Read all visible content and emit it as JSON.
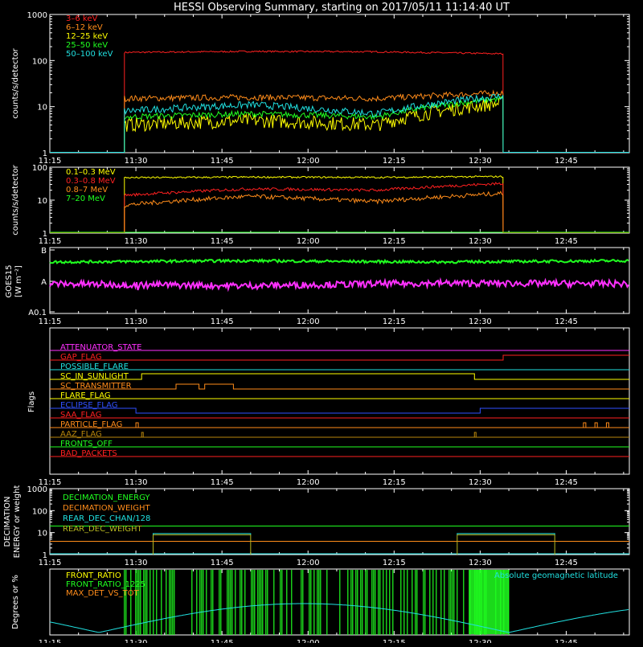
{
  "title": "HESSI Observing Summary, starting on 2017/05/11 11:14:40 UT",
  "time_axis": {
    "start": "11:15",
    "end": "12:56",
    "ticks": [
      "11:15",
      "11:30",
      "11:45",
      "12:00",
      "12:15",
      "12:30",
      "12:45"
    ]
  },
  "chart_data": [
    {
      "id": "lowE",
      "type": "line",
      "ylabel": "counts/s/detector",
      "yscale": "log",
      "ylim": [
        1,
        1000
      ],
      "yticks": [
        "1",
        "10",
        "100",
        "1000"
      ],
      "legend": "top-left",
      "data_window": [
        "11:28",
        "12:34"
      ],
      "series": [
        {
          "name": "3–6 keV",
          "color": "#ff2020",
          "level": [
            150,
            158,
            155,
            140
          ],
          "noise": 0.04
        },
        {
          "name": "6–12 keV",
          "color": "#ff8c1a",
          "level": [
            15,
            16,
            15,
            20
          ],
          "noise": 0.15
        },
        {
          "name": "12–25 keV",
          "color": "#ffff00",
          "level": [
            4,
            5,
            4,
            12
          ],
          "noise": 0.35
        },
        {
          "name": "25–50 keV",
          "color": "#20ff20",
          "level": [
            6,
            7,
            6,
            15
          ],
          "noise": 0.15
        },
        {
          "name": "50–100 keV",
          "color": "#20e0e0",
          "level": [
            8,
            11,
            7,
            17
          ],
          "noise": 0.18
        }
      ]
    },
    {
      "id": "highE",
      "type": "line",
      "ylabel": "counts/s/detector",
      "yscale": "log",
      "ylim": [
        1,
        100
      ],
      "yticks": [
        "1",
        "10",
        "100"
      ],
      "legend": "top-left",
      "data_window": [
        "11:28",
        "12:34"
      ],
      "series": [
        {
          "name": "0.1–0.3 MeV",
          "color": "#ffff00",
          "level": [
            48,
            50,
            49,
            52
          ],
          "noise": 0.06
        },
        {
          "name": "0.3–0.8 MeV",
          "color": "#ff2020",
          "level": [
            14,
            22,
            20,
            32
          ],
          "noise": 0.1
        },
        {
          "name": "0.8–7 MeV",
          "color": "#ff8c1a",
          "level": [
            7,
            13,
            9,
            16
          ],
          "noise": 0.15
        },
        {
          "name": "7–20 MeV",
          "color": "#20ff20",
          "level": [
            1,
            1,
            1,
            1
          ],
          "noise": 0
        }
      ]
    },
    {
      "id": "goes",
      "type": "line",
      "ylabel": "GOES15",
      "ylabel2": "[W m⁻²]",
      "yticks": [
        "A0.1",
        "A",
        "B"
      ],
      "series": [
        {
          "color": "#20ff20",
          "level": [
            0.78,
            0.8,
            0.78,
            0.8
          ],
          "noise": 0.02
        },
        {
          "color": "#ff30ff",
          "level": [
            0.45,
            0.42,
            0.46,
            0.45
          ],
          "noise": 0.05
        }
      ]
    },
    {
      "id": "flags",
      "type": "line",
      "ylabel": "Flags",
      "series": [
        {
          "name": "ATTENUATOR_STATE",
          "color": "#ff30ff"
        },
        {
          "name": "GAP_FLAG",
          "color": "#ff2020"
        },
        {
          "name": "POSSIBLE_FLARE",
          "color": "#20e0e0"
        },
        {
          "name": "SC_IN_SUNLIGHT",
          "color": "#ffff00"
        },
        {
          "name": "SC_TRANSMITTER",
          "color": "#ff8c1a"
        },
        {
          "name": "FLARE_FLAG",
          "color": "#ffff00"
        },
        {
          "name": "ECLIPSE_FLAG",
          "color": "#3050ff"
        },
        {
          "name": "SAA_FLAG",
          "color": "#ff2020"
        },
        {
          "name": "PARTICLE_FLAG",
          "color": "#ff8c1a"
        },
        {
          "name": "AAZ_FLAG",
          "color": "#b8860b"
        },
        {
          "name": "FRONTS_OFF",
          "color": "#20ff20"
        },
        {
          "name": "BAD_PACKETS",
          "color": "#ff2020"
        }
      ]
    },
    {
      "id": "decim",
      "type": "line",
      "ylabel": "DECIMATION",
      "ylabel2": "ENERGY or weight",
      "yscale": "log",
      "ylim": [
        1,
        1000
      ],
      "yticks": [
        "1",
        "10",
        "100",
        "1000"
      ],
      "series": [
        {
          "name": "DECIMATION_ENERGY",
          "color": "#20ff20",
          "level": [
            20
          ]
        },
        {
          "name": "DECIMATION_WEIGHT",
          "color": "#ff8c1a",
          "level": [
            4
          ]
        },
        {
          "name": "REAR_DEC_CHAN/128",
          "color": "#20e0e0",
          "level": [
            1
          ]
        },
        {
          "name": "REAR_DEC_WEIGHT",
          "color": "#b8b820",
          "level": [
            1,
            8
          ]
        }
      ]
    },
    {
      "id": "ratio",
      "type": "line",
      "ylabel": "Degrees or %",
      "series": [
        {
          "name": "FRONT_RATIO",
          "color": "#ffff00"
        },
        {
          "name": "FRONT_RATIO_1225",
          "color": "#20ff20"
        },
        {
          "name": "MAX_DET_VS_TOT",
          "color": "#ff8c1a"
        }
      ],
      "annotation": "Absolute geomagnetic latitude"
    }
  ]
}
